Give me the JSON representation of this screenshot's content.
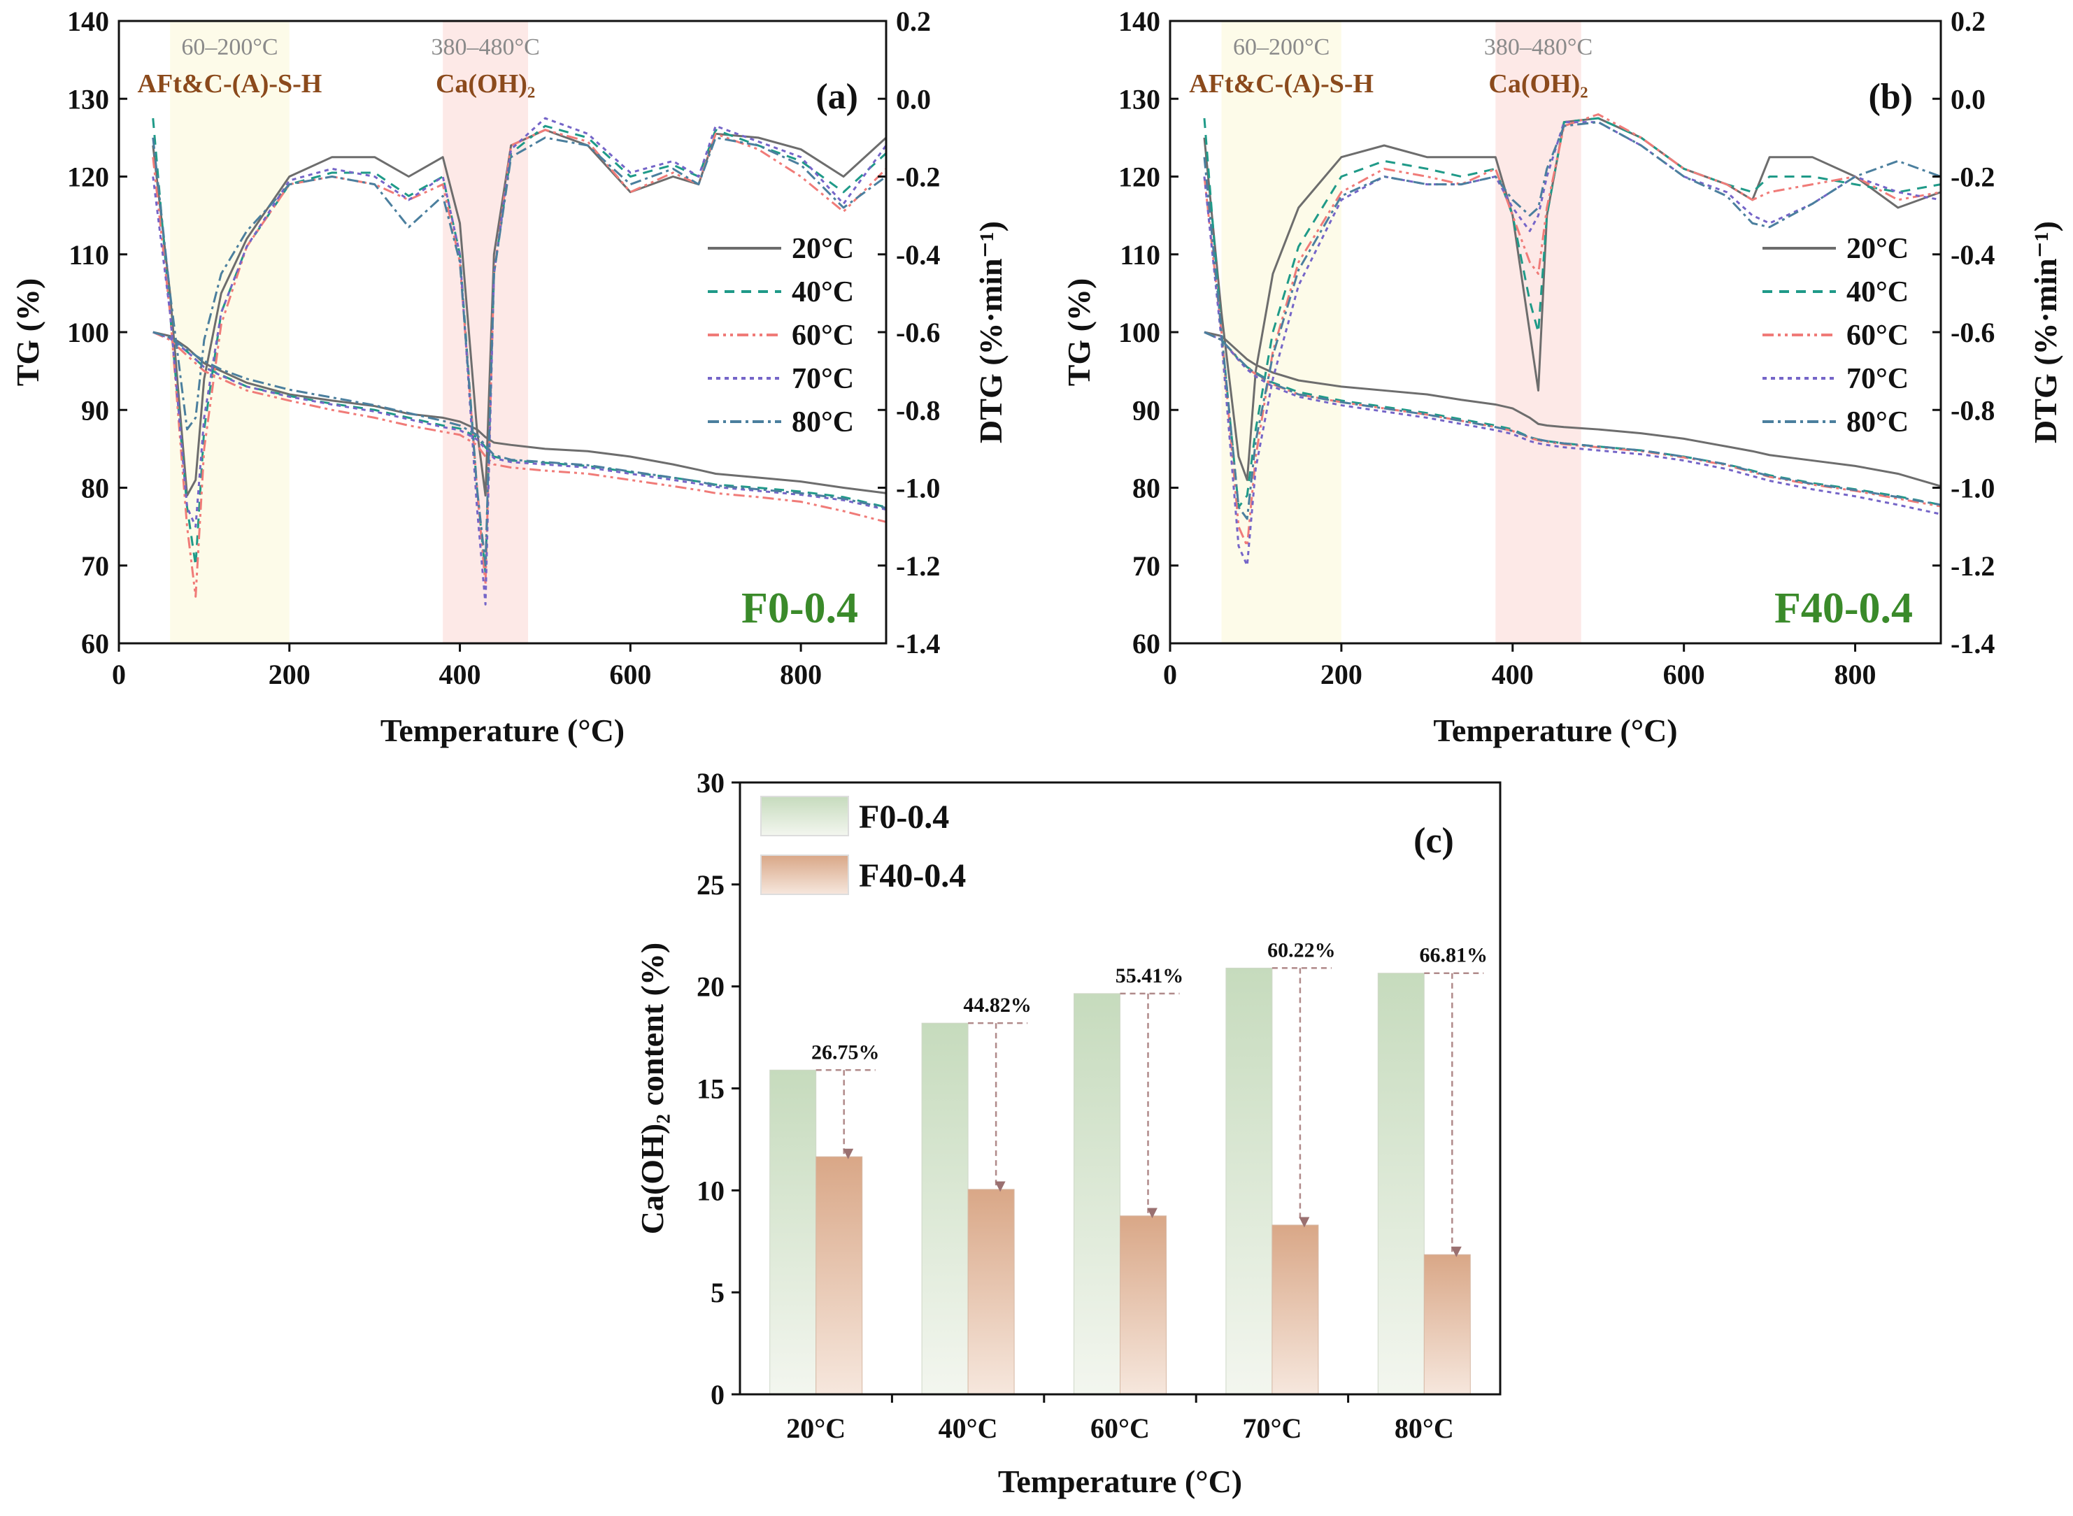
{
  "chart_data": [
    {
      "type": "line",
      "panel_label": "(a)",
      "sample": "F0-0.4",
      "xlabel": "Temperature (°C)",
      "ylabel_left": "TG (%)",
      "ylabel_right": "DTG (%·min⁻¹)",
      "xlim": [
        0,
        900
      ],
      "xticks": [
        0,
        200,
        400,
        600,
        800
      ],
      "ylim_left": [
        60,
        140
      ],
      "yticks_left": [
        60,
        70,
        80,
        90,
        100,
        110,
        120,
        130,
        140
      ],
      "ylim_right": [
        -1.4,
        0.2
      ],
      "yticks_right": [
        "-1.4",
        "-1.2",
        "-1.0",
        "-0.8",
        "-0.6",
        "-0.4",
        "-0.2",
        "0.0",
        "0.2"
      ],
      "bands": [
        {
          "range": [
            60,
            200
          ],
          "range_label": "60–200°C",
          "phase_label": "AFt&C-(A)-S-H",
          "color": "#fdfbe9"
        },
        {
          "range": [
            380,
            480
          ],
          "range_label": "380–480°C",
          "phase_label": "Ca(OH)₂",
          "color": "#fde9e7"
        }
      ],
      "x": [
        40,
        60,
        80,
        90,
        100,
        120,
        150,
        200,
        250,
        300,
        340,
        380,
        400,
        420,
        430,
        440,
        460,
        500,
        550,
        600,
        650,
        680,
        700,
        750,
        800,
        850,
        900
      ],
      "series": [
        {
          "name": "20°C",
          "color": "#6d6d6d",
          "dash": "",
          "tg": [
            100,
            99.5,
            98,
            97,
            96,
            95,
            93.5,
            92,
            91.2,
            90.5,
            89.5,
            89,
            88.5,
            87.5,
            86.5,
            85.8,
            85.5,
            85,
            84.7,
            84,
            83,
            82.3,
            81.8,
            81.3,
            80.8,
            80,
            79.3
          ],
          "dtg": [
            -0.12,
            -0.5,
            -1.02,
            -0.98,
            -0.72,
            -0.5,
            -0.36,
            -0.2,
            -0.15,
            -0.15,
            -0.2,
            -0.15,
            -0.32,
            -0.85,
            -1.02,
            -0.4,
            -0.12,
            -0.08,
            -0.12,
            -0.24,
            -0.2,
            -0.22,
            -0.09,
            -0.1,
            -0.13,
            -0.2,
            -0.1
          ]
        },
        {
          "name": "40°C",
          "color": "#1f9a88",
          "dash": "14,10",
          "tg": [
            100,
            99.3,
            97.5,
            96.5,
            95.5,
            94.5,
            93,
            91.8,
            90.8,
            90,
            89,
            88,
            87.6,
            86.5,
            85.2,
            84,
            83.5,
            83.2,
            82.8,
            82,
            81.3,
            80.8,
            80.4,
            80,
            79.5,
            78.8,
            77.5
          ],
          "dtg": [
            -0.05,
            -0.55,
            -1.05,
            -1.2,
            -0.85,
            -0.55,
            -0.38,
            -0.22,
            -0.19,
            -0.19,
            -0.25,
            -0.2,
            -0.4,
            -1.0,
            -1.22,
            -0.45,
            -0.14,
            -0.07,
            -0.1,
            -0.2,
            -0.17,
            -0.2,
            -0.08,
            -0.12,
            -0.16,
            -0.24,
            -0.14
          ]
        },
        {
          "name": "60°C",
          "color": "#f07b78",
          "dash": "16,6,4,6,4,6",
          "tg": [
            100,
            99,
            97,
            96,
            95,
            94,
            92.5,
            91.2,
            90,
            89,
            88,
            87.2,
            86.8,
            85.5,
            84,
            83,
            82.6,
            82.2,
            81.8,
            81,
            80.2,
            79.7,
            79.3,
            78.8,
            78.2,
            77,
            75.6
          ],
          "dtg": [
            -0.15,
            -0.55,
            -1.1,
            -1.28,
            -0.9,
            -0.58,
            -0.38,
            -0.22,
            -0.2,
            -0.22,
            -0.26,
            -0.22,
            -0.42,
            -1.0,
            -1.25,
            -0.45,
            -0.12,
            -0.08,
            -0.11,
            -0.24,
            -0.19,
            -0.22,
            -0.09,
            -0.13,
            -0.2,
            -0.29,
            -0.18
          ]
        },
        {
          "name": "70°C",
          "color": "#7565c8",
          "dash": "6,6",
          "tg": [
            100,
            99.2,
            97.5,
            96.5,
            95.5,
            94.4,
            93,
            91.7,
            90.7,
            89.8,
            88.8,
            87.8,
            87.4,
            86.2,
            85,
            83.8,
            83.3,
            83,
            82.6,
            81.8,
            81,
            80.5,
            80.1,
            79.6,
            79.1,
            78.4,
            77.2
          ],
          "dtg": [
            -0.2,
            -0.55,
            -1.05,
            -1.1,
            -0.82,
            -0.55,
            -0.38,
            -0.21,
            -0.18,
            -0.2,
            -0.26,
            -0.2,
            -0.4,
            -1.05,
            -1.3,
            -0.45,
            -0.13,
            -0.05,
            -0.09,
            -0.19,
            -0.16,
            -0.2,
            -0.07,
            -0.11,
            -0.15,
            -0.27,
            -0.12
          ]
        },
        {
          "name": "80°C",
          "color": "#4b7f9e",
          "dash": "16,6,4,6",
          "tg": [
            100,
            99.3,
            97.8,
            97,
            96.3,
            95.2,
            94,
            92.6,
            91.6,
            90.6,
            89.6,
            88.6,
            88,
            86.8,
            85.4,
            84.2,
            83.6,
            83.3,
            82.9,
            82.1,
            81.3,
            80.8,
            80.3,
            79.8,
            79.3,
            78.6,
            77.4
          ],
          "dtg": [
            -0.1,
            -0.5,
            -0.85,
            -0.82,
            -0.62,
            -0.45,
            -0.34,
            -0.22,
            -0.2,
            -0.22,
            -0.33,
            -0.25,
            -0.42,
            -1.0,
            -1.2,
            -0.45,
            -0.15,
            -0.1,
            -0.12,
            -0.22,
            -0.18,
            -0.22,
            -0.1,
            -0.12,
            -0.17,
            -0.28,
            -0.2
          ]
        }
      ]
    },
    {
      "type": "line",
      "panel_label": "(b)",
      "sample": "F40-0.4",
      "xlabel": "Temperature (°C)",
      "ylabel_left": "TG (%)",
      "ylabel_right": "DTG (%·min⁻¹)",
      "xlim": [
        0,
        900
      ],
      "xticks": [
        0,
        200,
        400,
        600,
        800
      ],
      "ylim_left": [
        60,
        140
      ],
      "yticks_left": [
        60,
        70,
        80,
        90,
        100,
        110,
        120,
        130,
        140
      ],
      "ylim_right": [
        -1.4,
        0.2
      ],
      "yticks_right": [
        "-1.4",
        "-1.2",
        "-1.0",
        "-0.8",
        "-0.6",
        "-0.4",
        "-0.2",
        "0.0",
        "0.2"
      ],
      "bands": [
        {
          "range": [
            60,
            200
          ],
          "range_label": "60–200°C",
          "phase_label": "AFt&C-(A)-S-H",
          "color": "#fdfbe9"
        },
        {
          "range": [
            380,
            480
          ],
          "range_label": "380–480°C",
          "phase_label": "Ca(OH)₂",
          "color": "#fde9e7"
        }
      ],
      "x": [
        40,
        60,
        80,
        90,
        100,
        120,
        150,
        200,
        250,
        300,
        340,
        380,
        400,
        420,
        430,
        440,
        460,
        500,
        550,
        600,
        650,
        680,
        700,
        750,
        800,
        850,
        900
      ],
      "series": [
        {
          "name": "20°C",
          "color": "#6d6d6d",
          "dash": "",
          "tg": [
            100,
            99.5,
            97.5,
            96.5,
            95.8,
            94.8,
            93.8,
            93,
            92.5,
            92,
            91.3,
            90.7,
            90.2,
            89,
            88.2,
            88,
            87.8,
            87.5,
            87,
            86.3,
            85.3,
            84.7,
            84.2,
            83.5,
            82.8,
            81.8,
            80.2
          ],
          "dtg": [
            -0.1,
            -0.55,
            -0.92,
            -0.98,
            -0.7,
            -0.45,
            -0.28,
            -0.15,
            -0.12,
            -0.15,
            -0.15,
            -0.15,
            -0.3,
            -0.6,
            -0.75,
            -0.3,
            -0.06,
            -0.05,
            -0.1,
            -0.18,
            -0.22,
            -0.26,
            -0.15,
            -0.15,
            -0.2,
            -0.28,
            -0.24
          ]
        },
        {
          "name": "40°C",
          "color": "#1f9a88",
          "dash": "14,10",
          "tg": [
            100,
            99,
            96.5,
            95.5,
            94.8,
            93.5,
            92.3,
            91.2,
            90.4,
            89.6,
            88.8,
            88,
            87.5,
            86.5,
            86.2,
            86,
            85.7,
            85.3,
            84.8,
            84,
            83,
            82.2,
            81.6,
            80.6,
            79.8,
            78.9,
            77.8
          ],
          "dtg": [
            -0.05,
            -0.6,
            -1.05,
            -1.02,
            -0.85,
            -0.6,
            -0.38,
            -0.2,
            -0.16,
            -0.18,
            -0.2,
            -0.18,
            -0.3,
            -0.52,
            -0.6,
            -0.3,
            -0.06,
            -0.05,
            -0.1,
            -0.18,
            -0.22,
            -0.24,
            -0.2,
            -0.2,
            -0.22,
            -0.24,
            -0.22
          ]
        },
        {
          "name": "60°C",
          "color": "#f07b78",
          "dash": "16,6,4,6,4,6",
          "tg": [
            100,
            99,
            96.5,
            95.4,
            94.6,
            93.3,
            92,
            91,
            90.2,
            89.4,
            88.6,
            87.8,
            87.3,
            86.4,
            86.1,
            85.9,
            85.6,
            85.2,
            84.7,
            83.9,
            82.9,
            82,
            81.4,
            80.4,
            79.6,
            78.6,
            77.6
          ],
          "dtg": [
            -0.2,
            -0.6,
            -1.1,
            -1.15,
            -0.92,
            -0.65,
            -0.42,
            -0.24,
            -0.18,
            -0.2,
            -0.22,
            -0.18,
            -0.3,
            -0.42,
            -0.45,
            -0.28,
            -0.07,
            -0.04,
            -0.1,
            -0.18,
            -0.22,
            -0.26,
            -0.24,
            -0.22,
            -0.2,
            -0.26,
            -0.24
          ]
        },
        {
          "name": "70°C",
          "color": "#7565c8",
          "dash": "6,6",
          "tg": [
            100,
            99,
            96.4,
            95.2,
            94.3,
            93,
            91.7,
            90.6,
            89.8,
            89,
            88.2,
            87.4,
            86.9,
            86,
            85.7,
            85.5,
            85.2,
            84.8,
            84.3,
            83.5,
            82.4,
            81.5,
            80.9,
            79.8,
            78.9,
            77.8,
            76.6
          ],
          "dtg": [
            -0.2,
            -0.62,
            -1.15,
            -1.2,
            -0.95,
            -0.72,
            -0.48,
            -0.26,
            -0.2,
            -0.22,
            -0.22,
            -0.2,
            -0.28,
            -0.34,
            -0.3,
            -0.2,
            -0.06,
            -0.06,
            -0.12,
            -0.2,
            -0.24,
            -0.3,
            -0.32,
            -0.27,
            -0.2,
            -0.24,
            -0.26
          ]
        },
        {
          "name": "80°C",
          "color": "#4b7f9e",
          "dash": "16,6,4,6",
          "tg": [
            100,
            99,
            96.6,
            95.5,
            94.7,
            93.4,
            92,
            91,
            90.2,
            89.4,
            88.6,
            87.8,
            87.3,
            86.5,
            86.2,
            86,
            85.7,
            85.3,
            84.8,
            84,
            83,
            82.1,
            81.5,
            80.5,
            79.7,
            78.8,
            77.8
          ],
          "dtg": [
            -0.15,
            -0.6,
            -1.05,
            -1.08,
            -0.88,
            -0.66,
            -0.44,
            -0.25,
            -0.2,
            -0.22,
            -0.22,
            -0.2,
            -0.26,
            -0.3,
            -0.28,
            -0.18,
            -0.07,
            -0.06,
            -0.12,
            -0.2,
            -0.25,
            -0.32,
            -0.33,
            -0.27,
            -0.2,
            -0.16,
            -0.2
          ]
        }
      ]
    },
    {
      "type": "bar",
      "panel_label": "(c)",
      "categories": [
        "20°C",
        "40°C",
        "60°C",
        "70°C",
        "80°C"
      ],
      "series": [
        {
          "name": "F0-0.4",
          "values": [
            15.9,
            18.2,
            19.65,
            20.9,
            20.65
          ],
          "color_top": "#c6dbbd",
          "color_bottom": "#f3f6ef"
        },
        {
          "name": "F40-0.4",
          "values": [
            11.65,
            10.05,
            8.75,
            8.3,
            6.85
          ],
          "color_top": "#d9a787",
          "color_bottom": "#f6e7dd"
        }
      ],
      "reduction_labels": [
        "26.75%",
        "44.82%",
        "55.41%",
        "60.22%",
        "66.81%"
      ],
      "xlabel": "Temperature (°C)",
      "ylabel": "Ca(OH)₂  content (%)",
      "ylim": [
        0,
        30
      ],
      "yticks": [
        0,
        5,
        10,
        15,
        20,
        25,
        30
      ]
    }
  ]
}
